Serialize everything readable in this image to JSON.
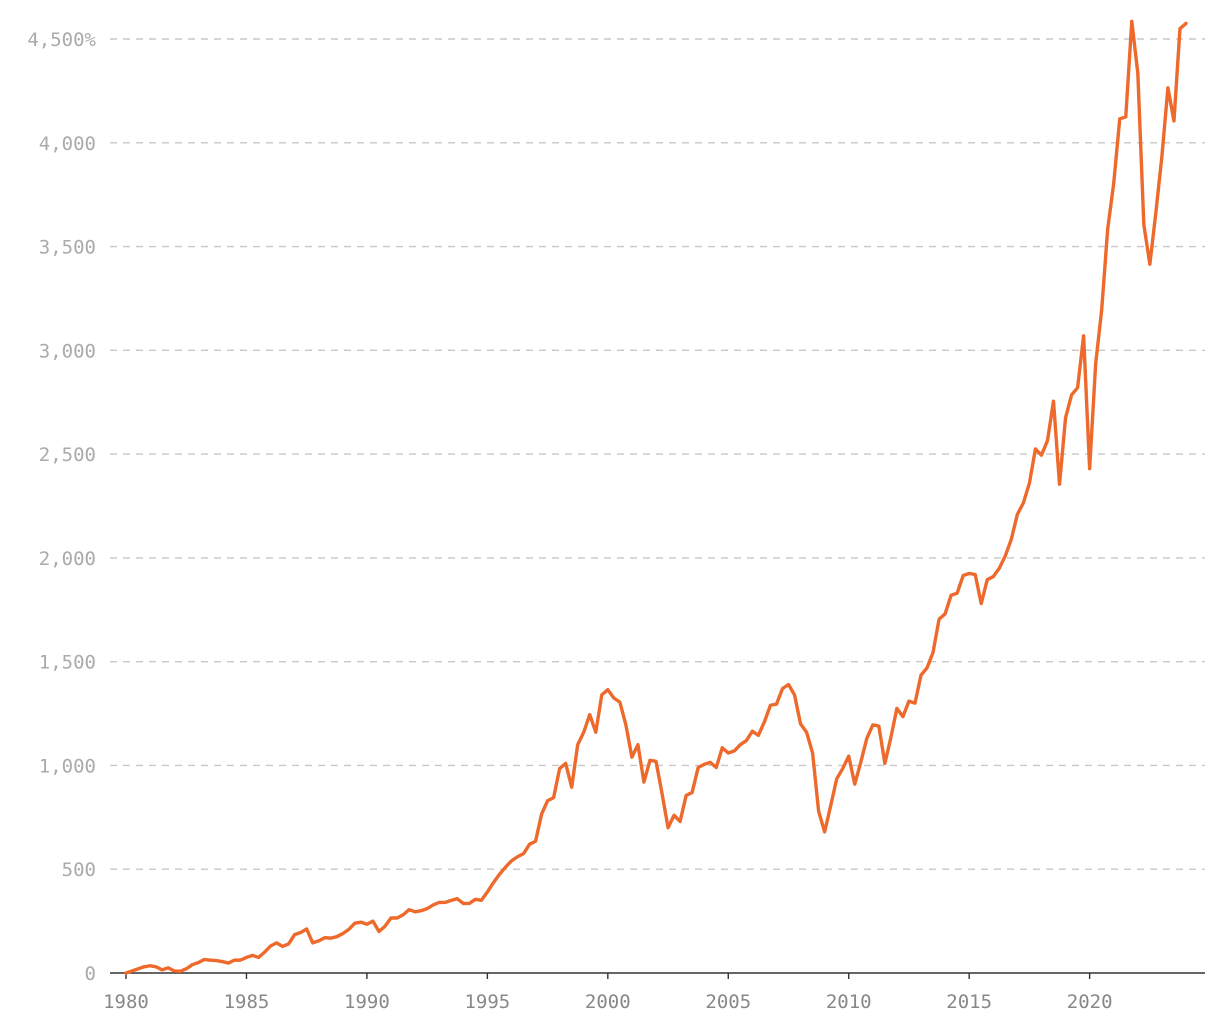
{
  "colors": {
    "line": "#ee6a2c",
    "grid": "#c8c8c8",
    "axis": "#333333",
    "ytick_text": "#aaaaaa",
    "xtick_text": "#888888"
  },
  "chart_data": {
    "type": "line",
    "title": "",
    "xlabel": "",
    "ylabel": "",
    "xlim": [
      1980,
      2024
    ],
    "ylim": [
      0,
      4500
    ],
    "grid": "horizontal-dashed",
    "legend": "none",
    "y_ticks": [
      {
        "value": 0,
        "label": "0"
      },
      {
        "value": 500,
        "label": "500"
      },
      {
        "value": 1000,
        "label": "1,000"
      },
      {
        "value": 1500,
        "label": "1,500"
      },
      {
        "value": 2000,
        "label": "2,000"
      },
      {
        "value": 2500,
        "label": "2,500"
      },
      {
        "value": 3000,
        "label": "3,000"
      },
      {
        "value": 3500,
        "label": "3,500"
      },
      {
        "value": 4000,
        "label": "4,000"
      },
      {
        "value": 4500,
        "label": "4,500%"
      }
    ],
    "x_ticks": [
      {
        "value": 1980,
        "label": "1980"
      },
      {
        "value": 1985,
        "label": "1985"
      },
      {
        "value": 1990,
        "label": "1990"
      },
      {
        "value": 1995,
        "label": "1995"
      },
      {
        "value": 2000,
        "label": "2000"
      },
      {
        "value": 2005,
        "label": "2005"
      },
      {
        "value": 2010,
        "label": "2010"
      },
      {
        "value": 2015,
        "label": "2015"
      },
      {
        "value": 2020,
        "label": "2020"
      }
    ],
    "series": [
      {
        "points": [
          [
            1980.0,
            0
          ],
          [
            1980.5,
            20
          ],
          [
            1980.75,
            30
          ],
          [
            1981.0,
            35
          ],
          [
            1981.25,
            30
          ],
          [
            1981.5,
            15
          ],
          [
            1981.75,
            25
          ],
          [
            1982.0,
            10
          ],
          [
            1982.25,
            8
          ],
          [
            1982.5,
            20
          ],
          [
            1982.75,
            40
          ],
          [
            1983.0,
            50
          ],
          [
            1983.25,
            65
          ],
          [
            1983.5,
            62
          ],
          [
            1983.75,
            60
          ],
          [
            1984.0,
            55
          ],
          [
            1984.25,
            48
          ],
          [
            1984.5,
            62
          ],
          [
            1984.75,
            62
          ],
          [
            1985.0,
            75
          ],
          [
            1985.25,
            85
          ],
          [
            1985.5,
            75
          ],
          [
            1985.75,
            100
          ],
          [
            1986.0,
            130
          ],
          [
            1986.25,
            145
          ],
          [
            1986.5,
            128
          ],
          [
            1986.75,
            140
          ],
          [
            1987.0,
            185
          ],
          [
            1987.25,
            195
          ],
          [
            1987.5,
            212
          ],
          [
            1987.75,
            145
          ],
          [
            1988.0,
            155
          ],
          [
            1988.25,
            170
          ],
          [
            1988.5,
            168
          ],
          [
            1988.75,
            175
          ],
          [
            1989.0,
            190
          ],
          [
            1989.25,
            210
          ],
          [
            1989.5,
            240
          ],
          [
            1989.75,
            245
          ],
          [
            1990.0,
            235
          ],
          [
            1990.25,
            250
          ],
          [
            1990.5,
            200
          ],
          [
            1990.75,
            225
          ],
          [
            1991.0,
            265
          ],
          [
            1991.25,
            265
          ],
          [
            1991.5,
            280
          ],
          [
            1991.75,
            305
          ],
          [
            1992.0,
            295
          ],
          [
            1992.25,
            300
          ],
          [
            1992.5,
            310
          ],
          [
            1992.75,
            328
          ],
          [
            1993.0,
            340
          ],
          [
            1993.25,
            340
          ],
          [
            1993.5,
            350
          ],
          [
            1993.75,
            358
          ],
          [
            1994.0,
            335
          ],
          [
            1994.25,
            335
          ],
          [
            1994.5,
            355
          ],
          [
            1994.75,
            350
          ],
          [
            1995.0,
            390
          ],
          [
            1995.25,
            435
          ],
          [
            1995.5,
            475
          ],
          [
            1995.75,
            510
          ],
          [
            1996.0,
            540
          ],
          [
            1996.25,
            560
          ],
          [
            1996.5,
            575
          ],
          [
            1996.75,
            620
          ],
          [
            1997.0,
            635
          ],
          [
            1997.25,
            765
          ],
          [
            1997.5,
            830
          ],
          [
            1997.75,
            845
          ],
          [
            1998.0,
            985
          ],
          [
            1998.25,
            1010
          ],
          [
            1998.5,
            895
          ],
          [
            1998.75,
            1100
          ],
          [
            1999.0,
            1160
          ],
          [
            1999.25,
            1245
          ],
          [
            1999.5,
            1160
          ],
          [
            1999.75,
            1340
          ],
          [
            2000.0,
            1365
          ],
          [
            2000.25,
            1325
          ],
          [
            2000.5,
            1305
          ],
          [
            2000.75,
            1195
          ],
          [
            2001.0,
            1040
          ],
          [
            2001.25,
            1100
          ],
          [
            2001.5,
            920
          ],
          [
            2001.75,
            1025
          ],
          [
            2002.0,
            1020
          ],
          [
            2002.25,
            865
          ],
          [
            2002.5,
            700
          ],
          [
            2002.75,
            760
          ],
          [
            2003.0,
            730
          ],
          [
            2003.25,
            855
          ],
          [
            2003.5,
            870
          ],
          [
            2003.75,
            990
          ],
          [
            2004.0,
            1005
          ],
          [
            2004.25,
            1015
          ],
          [
            2004.5,
            990
          ],
          [
            2004.75,
            1085
          ],
          [
            2005.0,
            1060
          ],
          [
            2005.25,
            1070
          ],
          [
            2005.5,
            1100
          ],
          [
            2005.75,
            1120
          ],
          [
            2006.0,
            1165
          ],
          [
            2006.25,
            1145
          ],
          [
            2006.5,
            1210
          ],
          [
            2006.75,
            1290
          ],
          [
            2007.0,
            1295
          ],
          [
            2007.25,
            1370
          ],
          [
            2007.5,
            1390
          ],
          [
            2007.75,
            1340
          ],
          [
            2008.0,
            1200
          ],
          [
            2008.25,
            1160
          ],
          [
            2008.5,
            1060
          ],
          [
            2008.75,
            780
          ],
          [
            2009.0,
            680
          ],
          [
            2009.25,
            805
          ],
          [
            2009.5,
            935
          ],
          [
            2009.75,
            985
          ],
          [
            2010.0,
            1045
          ],
          [
            2010.25,
            910
          ],
          [
            2010.5,
            1015
          ],
          [
            2010.75,
            1130
          ],
          [
            2011.0,
            1195
          ],
          [
            2011.25,
            1190
          ],
          [
            2011.5,
            1010
          ],
          [
            2011.75,
            1135
          ],
          [
            2012.0,
            1275
          ],
          [
            2012.25,
            1235
          ],
          [
            2012.5,
            1310
          ],
          [
            2012.75,
            1300
          ],
          [
            2013.0,
            1435
          ],
          [
            2013.25,
            1470
          ],
          [
            2013.5,
            1545
          ],
          [
            2013.75,
            1705
          ],
          [
            2014.0,
            1730
          ],
          [
            2014.25,
            1820
          ],
          [
            2014.5,
            1830
          ],
          [
            2014.75,
            1915
          ],
          [
            2015.0,
            1925
          ],
          [
            2015.25,
            1920
          ],
          [
            2015.5,
            1780
          ],
          [
            2015.75,
            1895
          ],
          [
            2016.0,
            1910
          ],
          [
            2016.25,
            1950
          ],
          [
            2016.5,
            2010
          ],
          [
            2016.75,
            2090
          ],
          [
            2017.0,
            2210
          ],
          [
            2017.25,
            2265
          ],
          [
            2017.5,
            2360
          ],
          [
            2017.75,
            2525
          ],
          [
            2018.0,
            2495
          ],
          [
            2018.25,
            2565
          ],
          [
            2018.5,
            2755
          ],
          [
            2018.75,
            2355
          ],
          [
            2019.0,
            2675
          ],
          [
            2019.25,
            2785
          ],
          [
            2019.5,
            2820
          ],
          [
            2019.75,
            3070
          ],
          [
            2020.0,
            2430
          ],
          [
            2020.25,
            2935
          ],
          [
            2020.5,
            3195
          ],
          [
            2020.75,
            3585
          ],
          [
            2021.0,
            3805
          ],
          [
            2021.25,
            4115
          ],
          [
            2021.5,
            4125
          ],
          [
            2021.75,
            4585
          ],
          [
            2022.0,
            4335
          ],
          [
            2022.25,
            3605
          ],
          [
            2022.5,
            3415
          ],
          [
            2022.75,
            3665
          ],
          [
            2023.0,
            3935
          ],
          [
            2023.25,
            4265
          ],
          [
            2023.5,
            4105
          ],
          [
            2023.75,
            4550
          ],
          [
            2024.0,
            4575
          ]
        ]
      }
    ]
  }
}
